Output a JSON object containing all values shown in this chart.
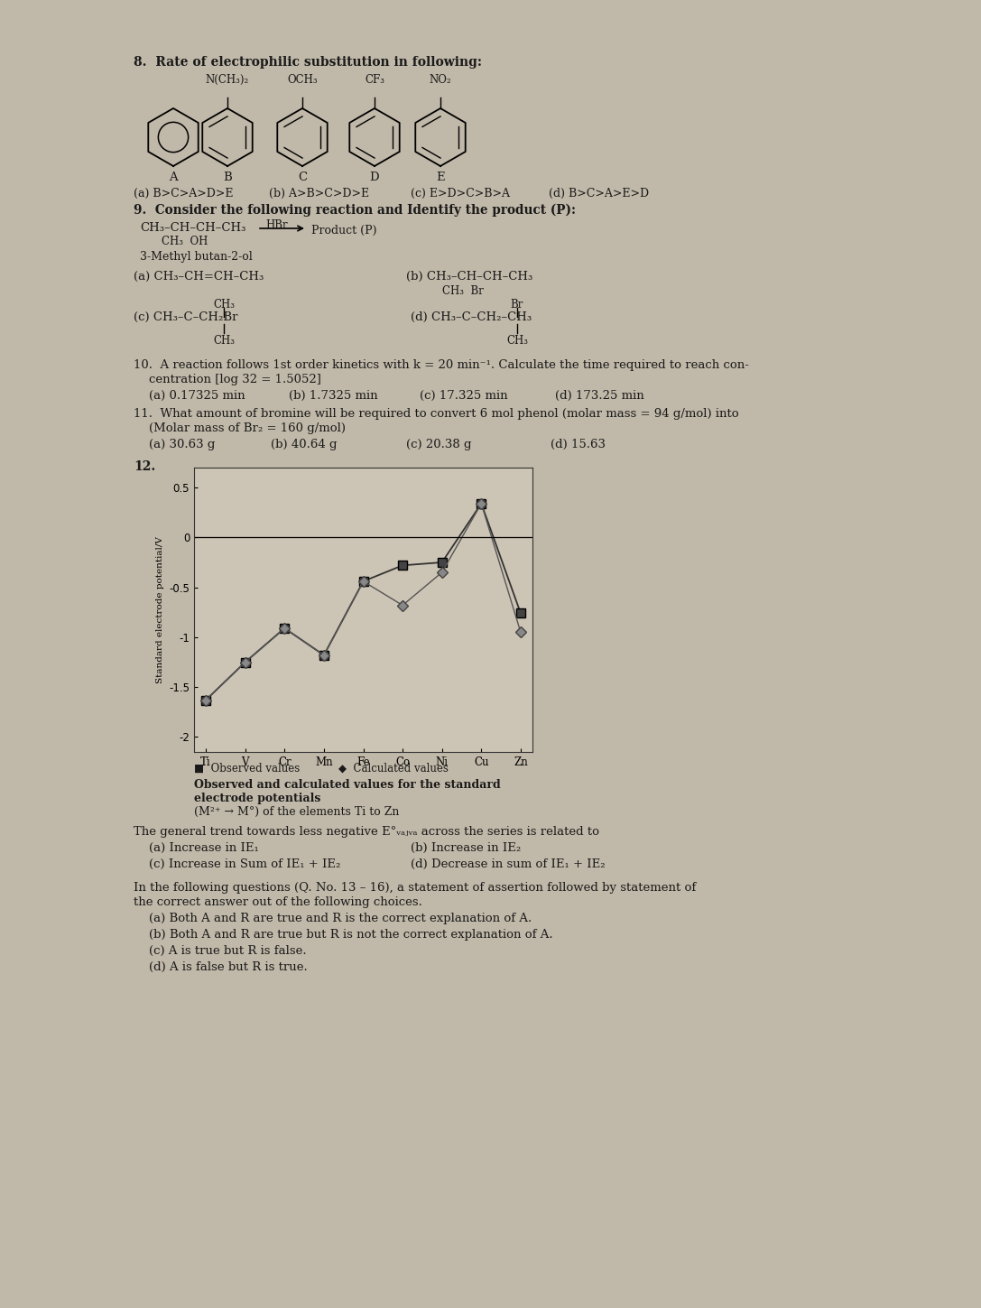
{
  "bg_color": "#c0b8a8",
  "graph_elements_x": [
    "Ti",
    "V",
    "Cr",
    "Mn",
    "Fe",
    "Co",
    "Ni",
    "Cu",
    "Zn"
  ],
  "graph_observed": [
    -1.63,
    -1.25,
    -0.91,
    -1.18,
    -0.44,
    -0.28,
    -0.25,
    0.34,
    -0.76
  ],
  "graph_calculated": [
    -1.63,
    -1.25,
    -0.91,
    -1.18,
    -0.44,
    -0.68,
    -0.35,
    0.34,
    -0.95
  ],
  "graph_ylabel": "Standard electrode potential/V",
  "legend_observed": "Observed values",
  "legend_calculated": "Calculated values",
  "graph_caption1": "Observed and calculated values for the standard",
  "graph_caption2": "electrode potentials",
  "graph_caption3": "(M²⁺ → M°) of the elements Ti to Zn"
}
